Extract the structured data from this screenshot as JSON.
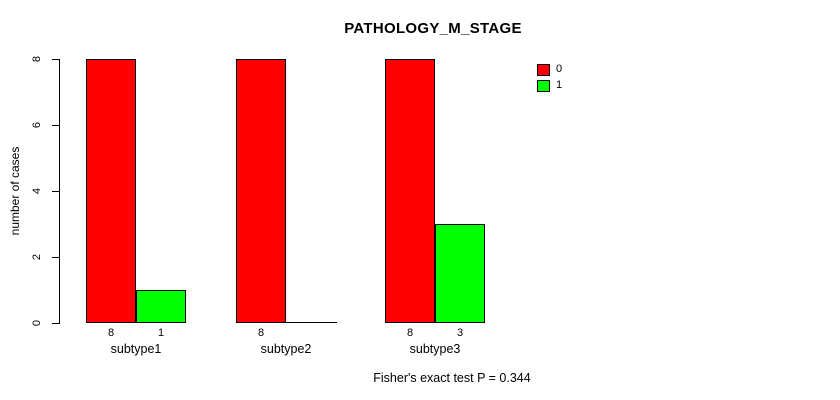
{
  "chart_data": {
    "type": "bar",
    "grouped": true,
    "title": "PATHOLOGY_M_STAGE",
    "xlabel": "",
    "ylabel": "number of cases",
    "ylim": [
      0,
      8
    ],
    "yticks": [
      0,
      2,
      4,
      6,
      8
    ],
    "grid": false,
    "categories": [
      "subtype1",
      "subtype2",
      "subtype3"
    ],
    "series": [
      {
        "name": "0",
        "color": "#ff0000",
        "values": [
          8,
          8,
          8
        ]
      },
      {
        "name": "1",
        "color": "#00ff00",
        "values": [
          1,
          0,
          3
        ]
      }
    ],
    "bar_value_labels": [
      [
        "8",
        "1"
      ],
      [
        "8",
        ""
      ],
      [
        "8",
        "3"
      ]
    ],
    "legend": {
      "position": "top-right",
      "entries": [
        {
          "label": "0",
          "color": "#ff0000"
        },
        {
          "label": "1",
          "color": "#00ff00"
        }
      ]
    },
    "annotation": "Fisher's exact test P = 0.344"
  }
}
